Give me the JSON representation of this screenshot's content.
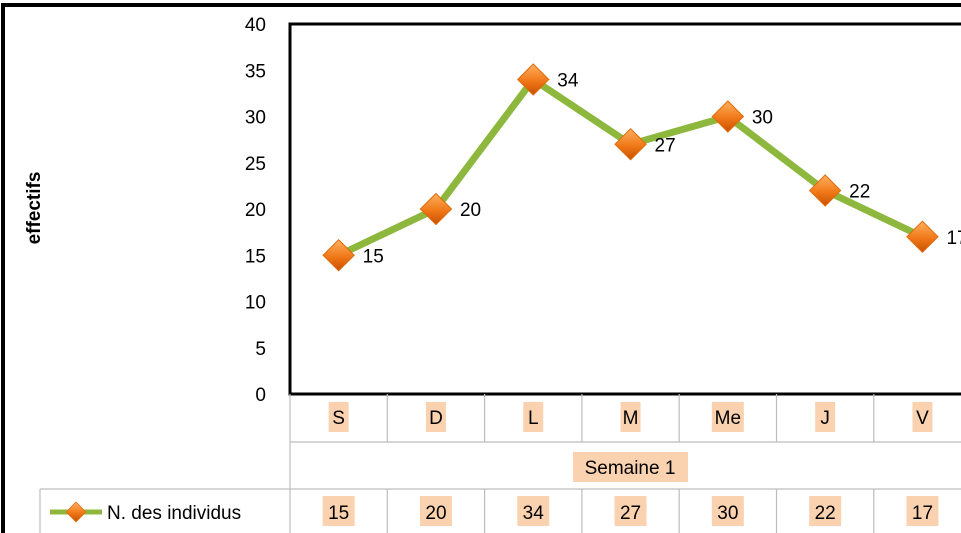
{
  "chart_data": {
    "type": "line",
    "title": "",
    "ylabel": "effectifs",
    "xlabel": "",
    "ylim": [
      0,
      40
    ],
    "yticks": [
      0,
      5,
      10,
      15,
      20,
      25,
      30,
      35,
      40
    ],
    "group_label": "Semaine 1",
    "categories": [
      "S",
      "D",
      "L",
      "M",
      "Me",
      "J",
      "V"
    ],
    "series": [
      {
        "name": "N. des individus",
        "values": [
          15,
          20,
          34,
          27,
          30,
          22,
          17
        ]
      }
    ],
    "data_table": true,
    "colors": {
      "line": "#8db83d",
      "marker": "#f07818",
      "highlight": "#fbd2b0"
    }
  }
}
